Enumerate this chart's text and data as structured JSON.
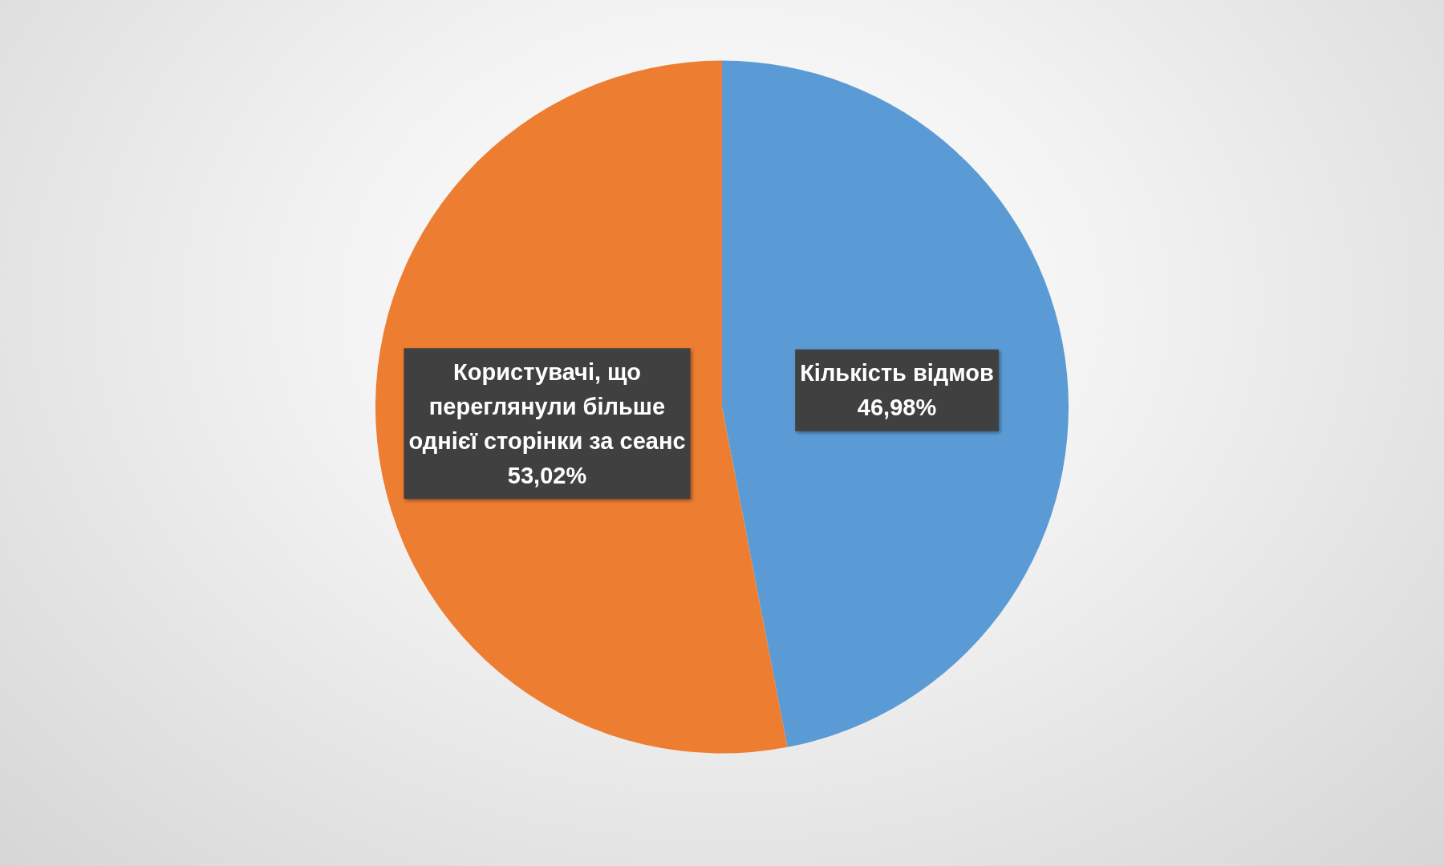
{
  "chart_data": {
    "type": "pie",
    "categories": [
      "Кількість відмов",
      "Користувачі, що переглянули більше однієї сторінки за сеанс"
    ],
    "values": [
      46.98,
      53.02
    ],
    "colors": [
      "#5b9bd5",
      "#ed7d31"
    ],
    "value_labels": [
      "46,98%",
      "53,02%"
    ]
  }
}
